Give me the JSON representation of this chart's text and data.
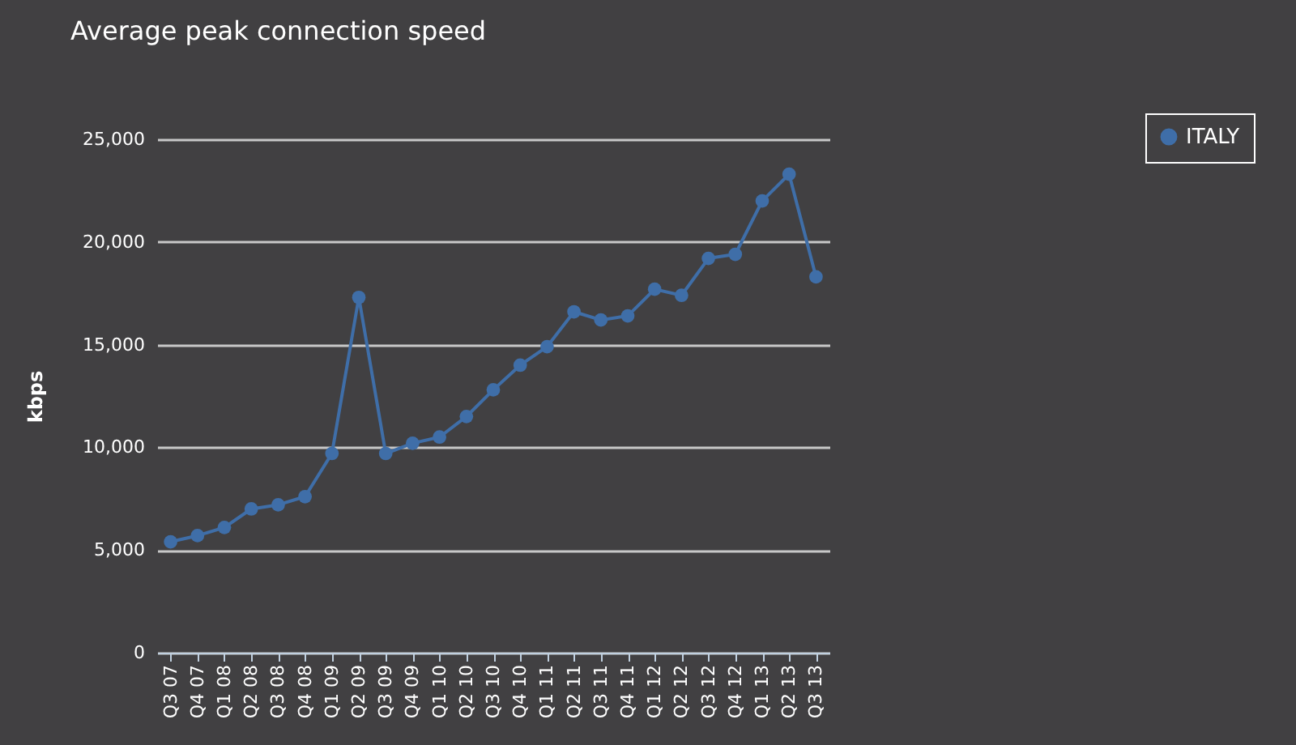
{
  "chart_data": {
    "type": "line",
    "title": "Average peak connection speed",
    "ylabel": "kbps",
    "categories": [
      "Q3 07",
      "Q4 07",
      "Q1 08",
      "Q2 08",
      "Q3 08",
      "Q4 08",
      "Q1 09",
      "Q2 09",
      "Q3 09",
      "Q4 09",
      "Q1 10",
      "Q2 10",
      "Q3 10",
      "Q4 10",
      "Q1 11",
      "Q2 11",
      "Q3 11",
      "Q4 11",
      "Q1 12",
      "Q2 12",
      "Q3 12",
      "Q4 12",
      "Q1 13",
      "Q2 13",
      "Q3 13"
    ],
    "series": [
      {
        "name": "ITALY",
        "color": "#3f6ea8",
        "values": [
          5400,
          5700,
          6100,
          7000,
          7200,
          7600,
          9700,
          17300,
          9700,
          10200,
          10500,
          11500,
          12800,
          14000,
          14900,
          16600,
          16200,
          16400,
          17700,
          17400,
          19200,
          19400,
          22000,
          23300,
          18300
        ]
      }
    ],
    "ylim": [
      0,
      25000
    ],
    "yticks": [
      {
        "value": 0,
        "label": "0"
      },
      {
        "value": 5000,
        "label": "5,000"
      },
      {
        "value": 10000,
        "label": "10,000"
      },
      {
        "value": 15000,
        "label": "15,000"
      },
      {
        "value": 20000,
        "label": "20,000"
      },
      {
        "value": 25000,
        "label": "25,000"
      }
    ],
    "grid": "y",
    "legend": "top right",
    "marker": "circle",
    "line_style": "solid"
  }
}
